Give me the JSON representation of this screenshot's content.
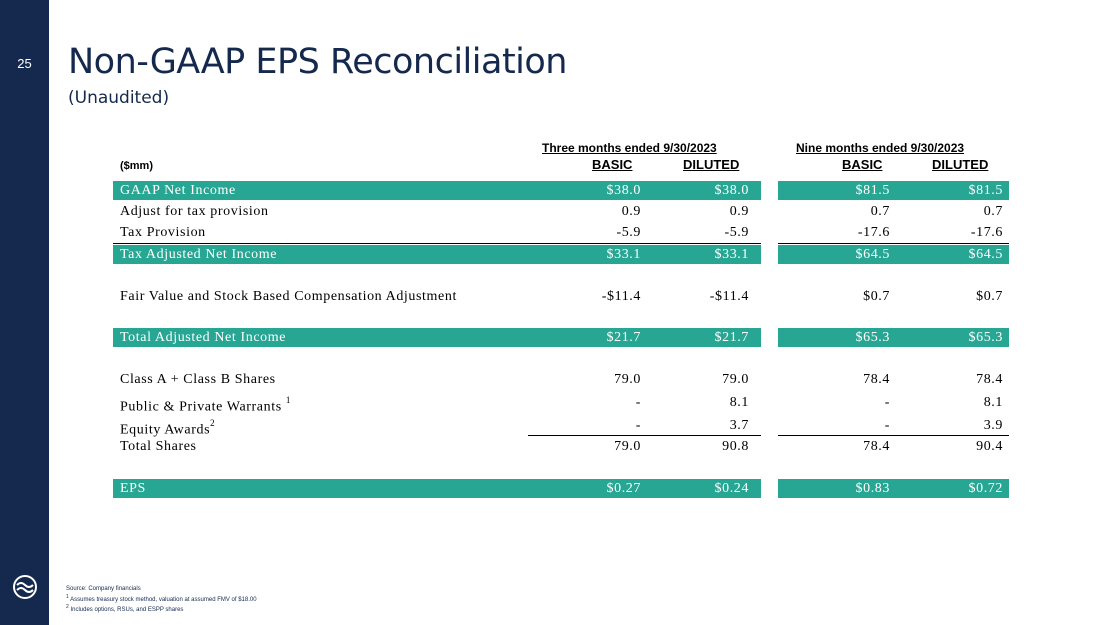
{
  "page_number": "25",
  "title": "Non-GAAP EPS Reconciliation",
  "subtitle": "(Unaudited)",
  "unit_label": "($mm)",
  "periods": {
    "three_months": "Three months ended 9/30/2023",
    "nine_months": "Nine months ended 9/30/2023"
  },
  "columns": {
    "basic": "BASIC",
    "diluted": "DILUTED"
  },
  "rows": [
    {
      "label": "GAAP Net Income",
      "q_basic": "$38.0",
      "q_diluted": "$38.0",
      "n_basic": "$81.5",
      "n_diluted": "$81.5"
    },
    {
      "label": "Adjust for tax provision",
      "q_basic": "0.9",
      "q_diluted": "0.9",
      "n_basic": "0.7",
      "n_diluted": "0.7"
    },
    {
      "label": "Tax Provision",
      "q_basic": "-5.9",
      "q_diluted": "-5.9",
      "n_basic": "-17.6",
      "n_diluted": "-17.6"
    },
    {
      "label": "Tax Adjusted Net Income",
      "q_basic": "$33.1",
      "q_diluted": "$33.1",
      "n_basic": "$64.5",
      "n_diluted": "$64.5"
    },
    {
      "label": "Fair Value and Stock Based Compensation Adjustment",
      "q_basic": "-$11.4",
      "q_diluted": "-$11.4",
      "n_basic": "$0.7",
      "n_diluted": "$0.7"
    },
    {
      "label": "Total Adjusted Net Income",
      "q_basic": "$21.7",
      "q_diluted": "$21.7",
      "n_basic": "$65.3",
      "n_diluted": "$65.3"
    },
    {
      "label": "Class A + Class B Shares",
      "q_basic": "79.0",
      "q_diluted": "79.0",
      "n_basic": "78.4",
      "n_diluted": "78.4"
    },
    {
      "label": "Public & Private Warrants",
      "sup": "1",
      "q_basic": "-",
      "q_diluted": "8.1",
      "n_basic": "-",
      "n_diluted": "8.1"
    },
    {
      "label": "Equity Awards",
      "sup": "2",
      "q_basic": "-",
      "q_diluted": "3.7",
      "n_basic": "-",
      "n_diluted": "3.9"
    },
    {
      "label": "Total Shares",
      "q_basic": "79.0",
      "q_diluted": "90.8",
      "n_basic": "78.4",
      "n_diluted": "90.4"
    },
    {
      "label": "EPS",
      "q_basic": "$0.27",
      "q_diluted": "$0.24",
      "n_basic": "$0.83",
      "n_diluted": "$0.72"
    }
  ],
  "footnotes": {
    "source": "Source: Company financials",
    "note1_mark": "1",
    "note1": "Assumes treasury stock method, valuation at assumed FMV of $18.00",
    "note2_mark": "2",
    "note2": "Includes options, RSUs, and ESPP shares"
  },
  "colors": {
    "navy": "#14294d",
    "teal": "#26a693"
  }
}
